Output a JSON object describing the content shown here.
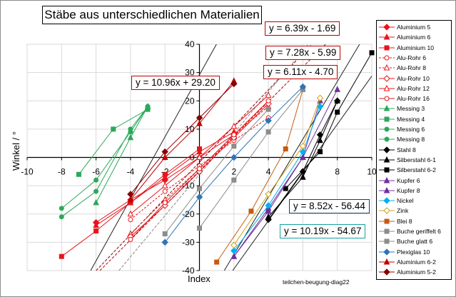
{
  "chart_data": {
    "type": "scatter",
    "title": "Stäbe aus unterschiedlichen Materialien",
    "xlabel": "Index",
    "ylabel": "Winkel / °",
    "xlim": [
      -10,
      10
    ],
    "ylim": [
      -40,
      40
    ],
    "xticks": [
      -10,
      -8,
      -6,
      -4,
      -2,
      0,
      2,
      4,
      6,
      8,
      10
    ],
    "yticks": [
      -40,
      -30,
      -20,
      -10,
      0,
      10,
      20,
      30,
      40
    ],
    "xtick_labels": [
      "-10",
      "-8",
      "-6",
      "-4",
      "-2",
      "0",
      "2",
      "4",
      "6",
      "8",
      "10"
    ],
    "ytick_labels": [
      "-40",
      "-30",
      "-20",
      "-10",
      "0",
      "10",
      "20",
      "30",
      "40"
    ],
    "grid": true,
    "footnote": "teilchen-beugung-diag22",
    "trendlines": [
      {
        "label": "y = 6.39x - 1.69",
        "slope": 6.39,
        "intercept": -1.69,
        "color": "#8b0000",
        "dash": "4,2",
        "box_color": "#c00000"
      },
      {
        "label": "y = 7.28x - 5.99",
        "slope": 7.28,
        "intercept": -5.99,
        "color": "#888888",
        "dash": "4,2",
        "box_color": "#c00000"
      },
      {
        "label": "y = 6.11x - 4.70",
        "slope": 6.11,
        "intercept": -4.7,
        "color": "#c00000",
        "dash": "4,2",
        "box_color": "#c00000"
      },
      {
        "label": "y = 10.96x + 29.20",
        "slope": 10.96,
        "intercept": 29.2,
        "color": "#222222",
        "dash": "",
        "box_color": "#c00000"
      },
      {
        "label": "y = 8.52x - 56.44",
        "slope": 8.52,
        "intercept": -56.44,
        "color": "#222222",
        "dash": "",
        "box_color": "#1f3864"
      },
      {
        "label": "y = 10.19x - 54.67",
        "slope": 10.19,
        "intercept": -54.67,
        "color": "#222222",
        "dash": "",
        "box_color": "#17a2a2"
      }
    ],
    "series": [
      {
        "name": "Aluminium 5",
        "color": "#e8141b",
        "marker": "diamond",
        "fill": true,
        "dash": "",
        "x": [
          -6,
          -4,
          -2,
          0,
          2
        ],
        "y": [
          -23,
          -15,
          -8,
          0,
          8
        ]
      },
      {
        "name": "Aluminium 6",
        "color": "#e8141b",
        "marker": "triangle",
        "fill": true,
        "dash": "",
        "x": [
          -6,
          -4,
          -2,
          0,
          2
        ],
        "y": [
          -24,
          -16,
          -7,
          2,
          9
        ]
      },
      {
        "name": "Aluminium 10",
        "color": "#e8141b",
        "marker": "square",
        "fill": true,
        "dash": "",
        "x": [
          -8,
          -6,
          -4,
          -2,
          0
        ],
        "y": [
          -35,
          -26,
          -16,
          -6,
          3
        ]
      },
      {
        "name": "Alu-Rohr 6",
        "color": "#e8141b",
        "marker": "circle",
        "fill": false,
        "dash": "3,2",
        "x": [
          -4,
          -2,
          0,
          2,
          4
        ],
        "y": [
          -22,
          -12,
          -3,
          6,
          14
        ]
      },
      {
        "name": "Alu-Rohr 8",
        "color": "#e8141b",
        "marker": "triangle",
        "fill": false,
        "dash": "3,2",
        "x": [
          -4,
          -2,
          0,
          2,
          4
        ],
        "y": [
          -27,
          -15,
          -4,
          8,
          18
        ]
      },
      {
        "name": "Alu-Rohr 10",
        "color": "#e8141b",
        "marker": "diamond",
        "fill": false,
        "dash": "",
        "x": [
          -4,
          -2,
          0,
          2,
          4
        ],
        "y": [
          -28,
          -17,
          -5,
          7,
          19
        ]
      },
      {
        "name": "Alu-Rohr 12",
        "color": "#e8141b",
        "marker": "triangle",
        "fill": false,
        "dash": "",
        "x": [
          -4,
          -2,
          0,
          2,
          4
        ],
        "y": [
          -20,
          -10,
          0,
          11,
          22
        ]
      },
      {
        "name": "Alu-Rohr 16",
        "color": "#e8141b",
        "marker": "circle",
        "fill": false,
        "dash": "",
        "x": [
          -4,
          -2,
          0,
          2,
          4
        ],
        "y": [
          -29,
          -16,
          -4,
          8,
          20
        ]
      },
      {
        "name": "Messing 3",
        "color": "#2ca85a",
        "marker": "triangle",
        "fill": true,
        "dash": "",
        "x": [
          -6,
          -4,
          -3
        ],
        "y": [
          -16,
          7,
          18
        ]
      },
      {
        "name": "Messing 4",
        "color": "#2ca85a",
        "marker": "square",
        "fill": true,
        "dash": "",
        "x": [
          -7,
          -5,
          -3
        ],
        "y": [
          -6,
          10,
          17
        ]
      },
      {
        "name": "Messing 6",
        "color": "#2ca85a",
        "marker": "circle",
        "fill": true,
        "dash": "",
        "x": [
          -8,
          -6,
          -4,
          -3
        ],
        "y": [
          -18,
          -8,
          9,
          18
        ]
      },
      {
        "name": "Messing 8",
        "color": "#2ca85a",
        "marker": "circle",
        "fill": true,
        "dash": "",
        "x": [
          -8,
          -6,
          -4,
          -3
        ],
        "y": [
          -21,
          -12,
          10,
          18
        ]
      },
      {
        "name": "Stahl 8",
        "color": "#000000",
        "marker": "diamond",
        "fill": true,
        "dash": "",
        "x": [
          4,
          6,
          7,
          8
        ],
        "y": [
          -22,
          -5,
          8,
          20
        ]
      },
      {
        "name": "Silberstahl 6-1",
        "color": "#000000",
        "marker": "triangle",
        "fill": true,
        "dash": "",
        "x": [
          4,
          6,
          7,
          8
        ],
        "y": [
          -21,
          -7,
          6,
          20
        ]
      },
      {
        "name": "Silberstahl 6-2",
        "color": "#000000",
        "marker": "square",
        "fill": true,
        "dash": "",
        "x": [
          5,
          7,
          8,
          10
        ],
        "y": [
          -11,
          2,
          16,
          37
        ]
      },
      {
        "name": "Kupfer 6",
        "color": "#7030a0",
        "marker": "triangle",
        "fill": true,
        "dash": "",
        "x": [
          2,
          4,
          6,
          8
        ],
        "y": [
          -35,
          -19,
          0,
          24
        ]
      },
      {
        "name": "Kupfer 8",
        "color": "#7030a0",
        "marker": "triangle",
        "fill": true,
        "dash": "",
        "x": [
          2,
          4,
          6,
          7
        ],
        "y": [
          -35,
          -18,
          0,
          20
        ]
      },
      {
        "name": "Nickel",
        "color": "#00b0f0",
        "marker": "diamond",
        "fill": true,
        "dash": "",
        "x": [
          2,
          4,
          6,
          7
        ],
        "y": [
          -33,
          -17,
          2,
          18
        ]
      },
      {
        "name": "Zink",
        "color": "#d4a017",
        "marker": "diamond",
        "fill": false,
        "dash": "",
        "x": [
          2,
          4,
          6,
          7
        ],
        "y": [
          -31,
          -13,
          4,
          21
        ]
      },
      {
        "name": "Blei 8",
        "color": "#c55a11",
        "marker": "square",
        "fill": true,
        "dash": "",
        "x": [
          1,
          3,
          5,
          6
        ],
        "y": [
          -37,
          -19,
          3,
          24
        ]
      },
      {
        "name": "Buche geriffelt 6",
        "color": "#8c8c8c",
        "marker": "square",
        "fill": true,
        "dash": "",
        "x": [
          0,
          2,
          4,
          6
        ],
        "y": [
          -25,
          -8,
          9,
          24
        ]
      },
      {
        "name": "Buche glatt 6",
        "color": "#8c8c8c",
        "marker": "square",
        "fill": true,
        "dash": "",
        "x": [
          -2,
          0,
          2,
          4
        ],
        "y": [
          -27,
          -11,
          4,
          17
        ]
      },
      {
        "name": "Plexiglas 10",
        "color": "#2f75b5",
        "marker": "diamond",
        "fill": true,
        "dash": "",
        "x": [
          -2,
          0,
          2,
          4,
          6
        ],
        "y": [
          -30,
          -14,
          0,
          13,
          25
        ]
      },
      {
        "name": "Aluminium 6-2",
        "color": "#c00000",
        "marker": "triangle",
        "fill": true,
        "dash": "",
        "x": [
          -4,
          -2,
          0,
          2
        ],
        "y": [
          -15,
          0,
          12,
          27
        ]
      },
      {
        "name": "Aluminium 5-2",
        "color": "#8b0000",
        "marker": "diamond",
        "fill": true,
        "dash": "",
        "x": [
          -4,
          -2,
          0,
          2
        ],
        "y": [
          -13,
          2,
          14,
          26
        ]
      }
    ]
  }
}
